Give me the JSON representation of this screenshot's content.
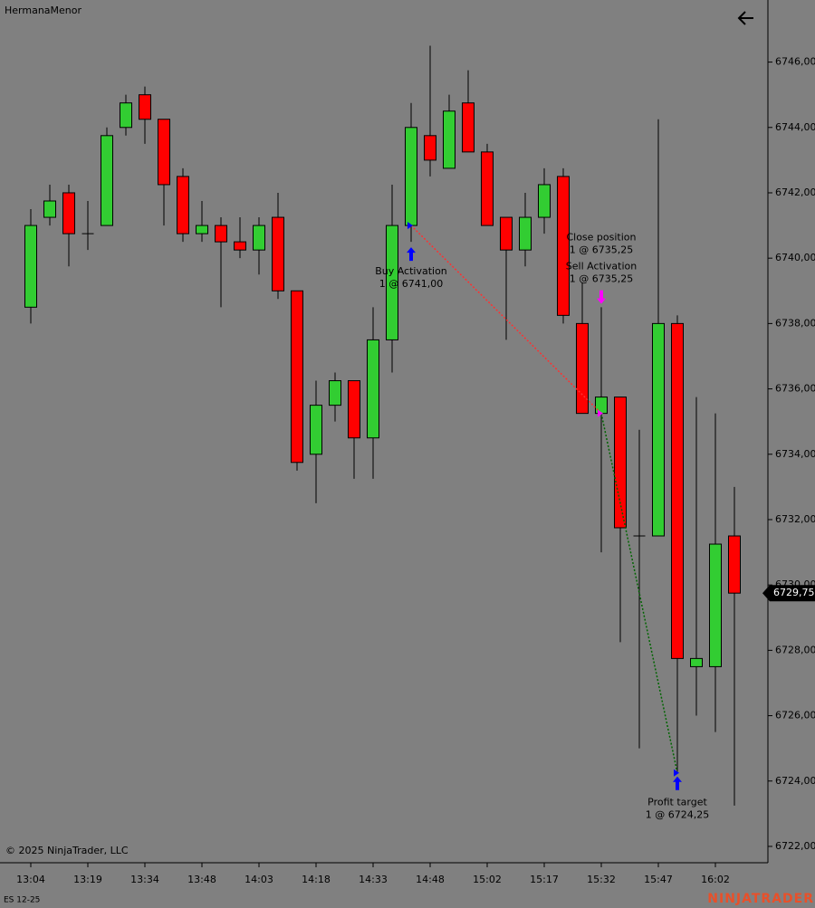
{
  "chart_data": {
    "type": "candlestick",
    "instrument_title": "HermanaMenor",
    "contract": "ES 12-25",
    "copyright": "© 2025 NinjaTrader, LLC",
    "brand": "NINJATRADER",
    "categories": [
      "13:04",
      null,
      null,
      "13:19",
      null,
      null,
      "13:34",
      null,
      null,
      "13:48",
      null,
      null,
      "14:03",
      null,
      null,
      "14:18",
      null,
      null,
      "14:33",
      null,
      null,
      "14:48",
      null,
      null,
      "15:02",
      null,
      null,
      "15:17",
      null,
      null,
      "15:32",
      null,
      null,
      "15:47",
      null,
      null,
      "16:02",
      null
    ],
    "open": [
      6738.5,
      6741.25,
      6742,
      6740.75,
      6741,
      6744,
      6745,
      6744.25,
      6742.5,
      6740.75,
      6741,
      6740.5,
      6740.25,
      6741.25,
      6739,
      6734,
      6735.5,
      6736.25,
      6734.5,
      6737.5,
      6741,
      6743.75,
      6742.75,
      6744.75,
      6743.25,
      6741.25,
      6740.25,
      6741.25,
      6742.5,
      6738,
      6735.25,
      6735.75,
      6731.5,
      6731.5,
      6738,
      6727.5,
      6727.5,
      6731.5
    ],
    "high": [
      6741.5,
      6742.25,
      6742.25,
      6741.75,
      6744,
      6745,
      6745.25,
      6744.25,
      6742.75,
      6741.75,
      6741.25,
      6741.25,
      6741.25,
      6742,
      6739,
      6736.25,
      6736.5,
      6736.25,
      6738.5,
      6742.25,
      6744.75,
      6746.5,
      6745,
      6745.75,
      6743.5,
      6741.25,
      6742,
      6742.75,
      6742.75,
      6739.25,
      6738.5,
      6735.75,
      6734.75,
      6744.25,
      6738.25,
      6735.75,
      6735.25,
      6733
    ],
    "low": [
      6738,
      6741,
      6739.75,
      6740.25,
      6741,
      6743.75,
      6743.5,
      6741,
      6740.5,
      6740.5,
      6738.5,
      6740,
      6739.5,
      6738.75,
      6733.5,
      6732.5,
      6735,
      6733.25,
      6733.25,
      6736.5,
      6740.5,
      6742.5,
      6742.75,
      6743.25,
      6741,
      6737.5,
      6739.75,
      6740.75,
      6738,
      6735.25,
      6731,
      6728.25,
      6725,
      6731.5,
      6724.25,
      6726,
      6725.5,
      6723.25
    ],
    "close": [
      6741,
      6741.75,
      6740.75,
      6740.75,
      6743.75,
      6744.75,
      6744.25,
      6742.25,
      6740.75,
      6741,
      6740.5,
      6740.25,
      6741,
      6739,
      6733.75,
      6735.5,
      6736.25,
      6734.5,
      6737.5,
      6741,
      6744,
      6743,
      6744.5,
      6743.25,
      6741,
      6740.25,
      6741.25,
      6742.25,
      6738.25,
      6735.25,
      6735.75,
      6731.75,
      6731.5,
      6738,
      6727.75,
      6727.75,
      6731.25,
      6729.75
    ],
    "up_color": "#32cd32",
    "down_color": "#ff0000",
    "ylim": [
      6721.5,
      6747.9
    ],
    "yticks": [
      {
        "value": 6722,
        "label": "6722,00"
      },
      {
        "value": 6724,
        "label": "6724,00"
      },
      {
        "value": 6726,
        "label": "6726,00"
      },
      {
        "value": 6728,
        "label": "6728,00"
      },
      {
        "value": 6730,
        "label": "6730,00"
      },
      {
        "value": 6732,
        "label": "6732,00"
      },
      {
        "value": 6734,
        "label": "6734,00"
      },
      {
        "value": 6736,
        "label": "6736,00"
      },
      {
        "value": 6738,
        "label": "6738,00"
      },
      {
        "value": 6740,
        "label": "6740,00"
      },
      {
        "value": 6742,
        "label": "6742,00"
      },
      {
        "value": 6744,
        "label": "6744,00"
      },
      {
        "value": 6746,
        "label": "6746,00"
      }
    ],
    "last_price": {
      "value": 6729.75,
      "label": "6729,75"
    },
    "trades": [
      {
        "name": "Buy Activation",
        "label": "1 @ 6741,00",
        "price": 6741
      },
      {
        "name": "Close position",
        "label": "1 @ 6735,25",
        "price": 6735.25
      },
      {
        "name": "Sell Activation",
        "label": "1 @ 6735,25",
        "price": 6735.25
      },
      {
        "name": "Profit target",
        "label": "1 @ 6724,25",
        "price": 6724.25
      }
    ]
  }
}
